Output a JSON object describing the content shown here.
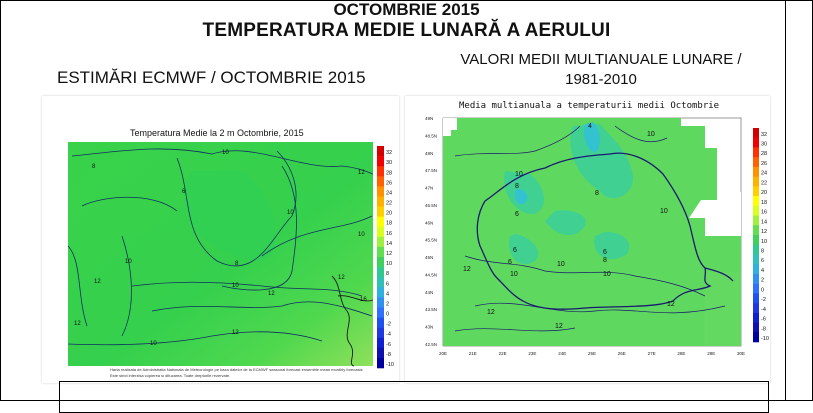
{
  "header": {
    "title_line1": "OCTOMBRIE 2015",
    "title_line2": "TEMPERATURA MEDIE LUNARĂ A AERULUI",
    "left_heading": "ESTIMĂRI ECMWF / OCTOMBRIE 2015",
    "right_heading_line1": "VALORI MEDII MULTIANUALE LUNARE /",
    "right_heading_line2": "1981-2010"
  },
  "left_map": {
    "title": "Temperatura Medie la 2 m Octombrie, 2015",
    "colorbar": [
      "32",
      "30",
      "28",
      "26",
      "24",
      "22",
      "20",
      "18",
      "16",
      "14",
      "12",
      "10",
      "8",
      "6",
      "4",
      "2",
      "0",
      "-2",
      "-4",
      "-6",
      "-8",
      "-10"
    ],
    "contours": [
      "8",
      "10",
      "6",
      "8",
      "10",
      "12",
      "10",
      "12",
      "12",
      "10",
      "12",
      "16",
      "10",
      "12",
      "12",
      "10"
    ],
    "footnote_line1": "Harta realizata de Administratia Nationala de Meteorologie pe baza datelor de la ECMWF seasonal forecast ensemble mean monthly forecasts",
    "footnote_line2": "Este strict interzisa copierea si difuzarea. Toate drepturile rezervate."
  },
  "right_map": {
    "title": "Media multianuala a temperaturii medii Octombrie",
    "lat_ticks": [
      "49N",
      "48.5N",
      "48N",
      "47.5N",
      "47N",
      "46.5N",
      "46N",
      "45.5N",
      "45N",
      "44.5N",
      "44N",
      "43.5N",
      "43N",
      "42.5N"
    ],
    "lon_ticks": [
      "20E",
      "21E",
      "22E",
      "23E",
      "24E",
      "25E",
      "26E",
      "27E",
      "28E",
      "29E",
      "30E"
    ],
    "colorbar": [
      "32",
      "30",
      "28",
      "26",
      "24",
      "22",
      "20",
      "18",
      "16",
      "14",
      "12",
      "10",
      "8",
      "6",
      "4",
      "2",
      "0",
      "-2",
      "-4",
      "-6",
      "-8",
      "-10"
    ],
    "contours": [
      "4",
      "10",
      "10",
      "8",
      "6",
      "10",
      "8",
      "10",
      "6",
      "6",
      "8",
      "10",
      "6",
      "12",
      "10",
      "12",
      "12",
      "12"
    ],
    "accent_colors": {
      "land": "#5fd85f",
      "border": "#1a1a6e",
      "contour": "#1a1a6e"
    }
  }
}
